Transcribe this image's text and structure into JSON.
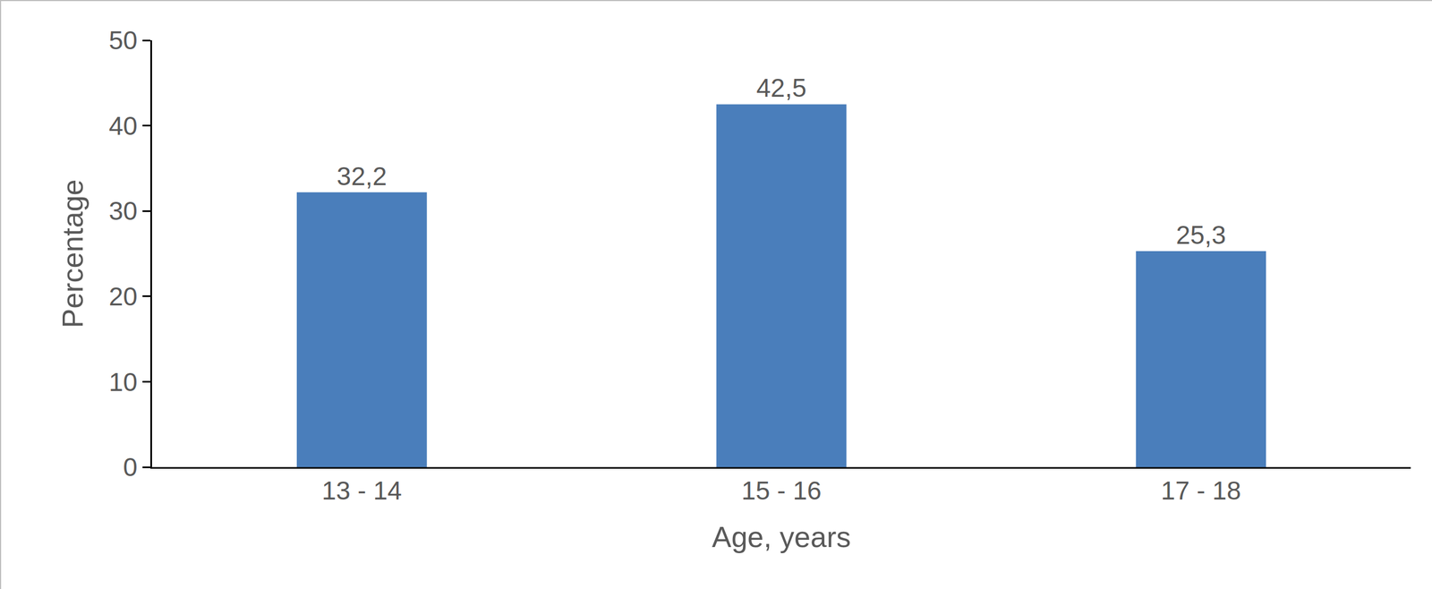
{
  "chart_data": {
    "type": "bar",
    "x_label": "Age, years",
    "y_label": "Percentage",
    "categories": [
      "13 - 14",
      "15 - 16",
      "17 - 18"
    ],
    "values": [
      32.2,
      42.5,
      25.3
    ],
    "value_labels": [
      "32,2",
      "42,5",
      "25,3"
    ],
    "color": "#4a7ebb",
    "ylim": [
      0,
      50
    ],
    "yticks": [
      0,
      10,
      20,
      30,
      40,
      50
    ],
    "grid": false,
    "data_labels": true
  }
}
